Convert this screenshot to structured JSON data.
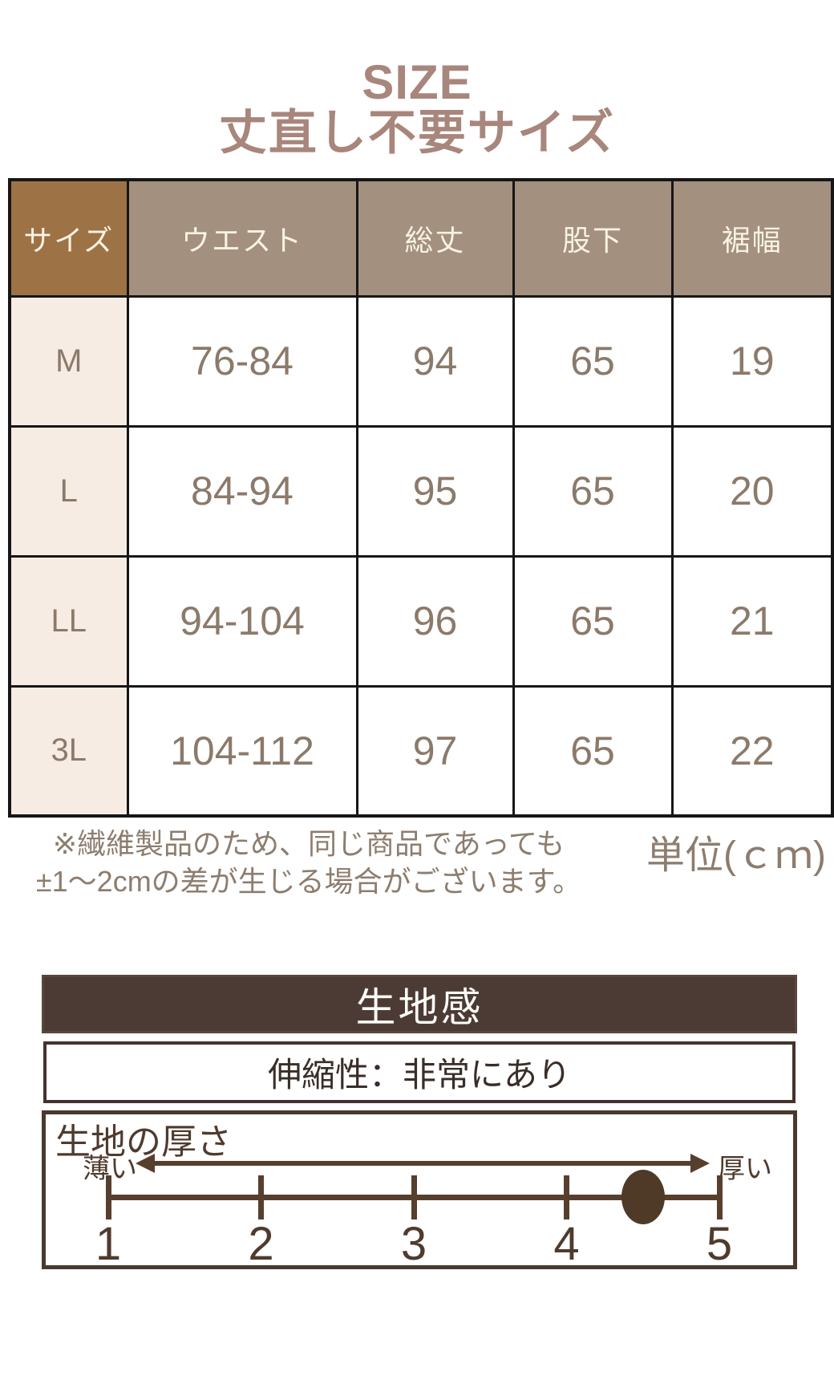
{
  "title": {
    "line1": "SIZE",
    "line2": "丈直し不要サイズ"
  },
  "size_table": {
    "columns": [
      "サイズ",
      "ウエスト",
      "総丈",
      "股下",
      "裾幅"
    ],
    "rows": [
      {
        "size": "M",
        "values": [
          "76-84",
          "94",
          "65",
          "19"
        ]
      },
      {
        "size": "L",
        "values": [
          "84-94",
          "95",
          "65",
          "20"
        ]
      },
      {
        "size": "LL",
        "values": [
          "94-104",
          "96",
          "65",
          "21"
        ]
      },
      {
        "size": "3L",
        "values": [
          "104-112",
          "97",
          "65",
          "22"
        ]
      }
    ],
    "note_line1": "※繊維製品のため、同じ商品であっても",
    "note_line2": "±1〜2cmの差が生じる場合がございます。",
    "unit_label": "単位(ｃｍ)"
  },
  "fabric": {
    "section_title": "生地感",
    "stretch_label": "伸縮性：非常にあり",
    "thickness": {
      "title": "生地の厚さ",
      "left_label": "薄い",
      "right_label": "厚い",
      "tick_labels": [
        "1",
        "2",
        "3",
        "4",
        "5"
      ],
      "min": 1,
      "max": 5,
      "value": 4.5
    }
  },
  "colors": {
    "title_text": "#a8867c",
    "header_size_bg": "#9d7345",
    "header_bg": "#a3907e",
    "header_text": "#f8f2e4",
    "size_col_bg": "#f6ece3",
    "data_text": "#8b7a6a",
    "table_border": "#161616",
    "note_text": "#8d7d6e",
    "dark_brown_bar": "#4c3b34",
    "scale_brown": "#573f2e"
  }
}
